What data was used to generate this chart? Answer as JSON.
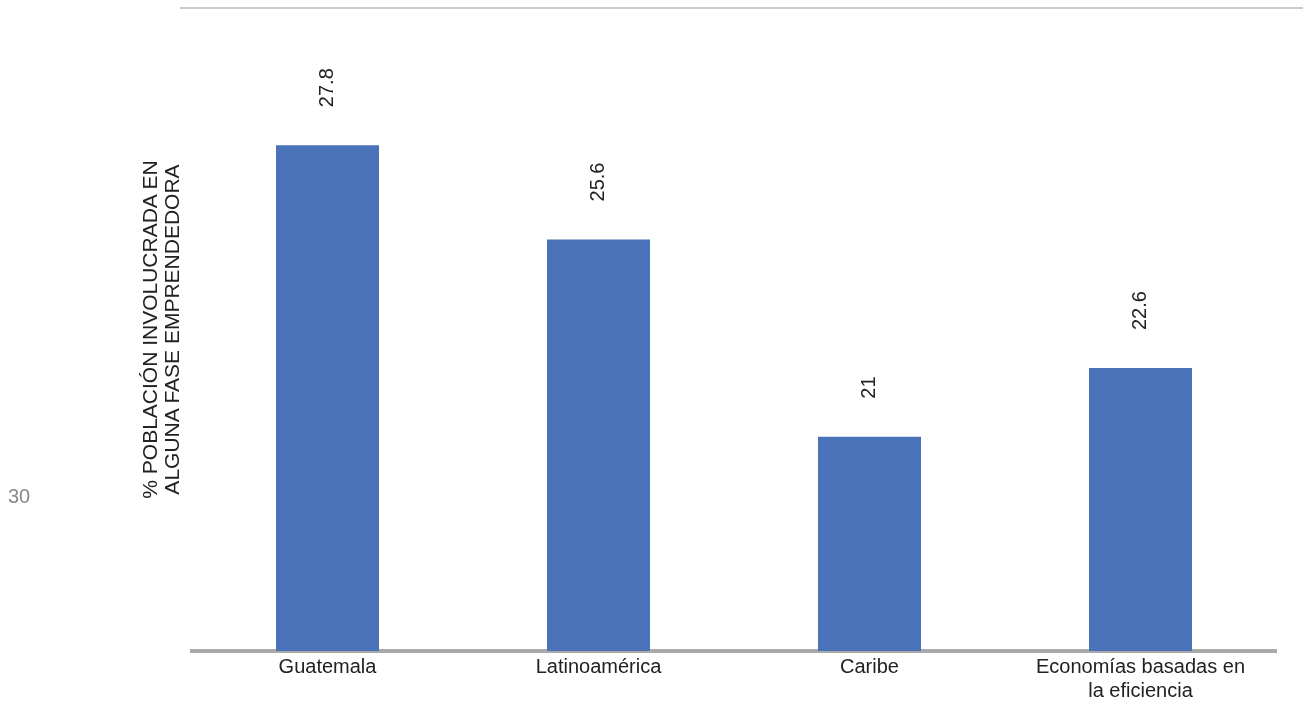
{
  "chart_data": {
    "type": "bar",
    "ylabel": "% POBLACIÓN INVOLUCRADA EN ALGUNA FASE EMPRENDEDORA",
    "categories": [
      "Guatemala",
      "Latinoamérica",
      "Caribe",
      "Economías basadas en la eficiencia"
    ],
    "values": [
      27.8,
      25.6,
      21,
      22.6
    ],
    "color": "#4a72b8",
    "ylim": [
      16,
      31
    ],
    "data_labels": true,
    "grid": false,
    "legend": false,
    "annotations": [
      "30"
    ]
  }
}
